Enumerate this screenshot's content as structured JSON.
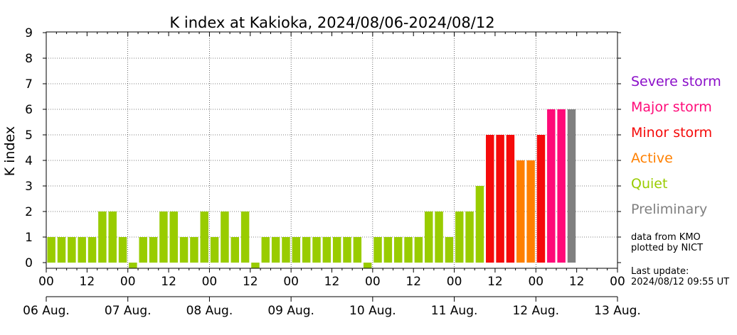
{
  "chart_data": {
    "type": "bar",
    "title": "K index at Kakioka, 2024/08/06-2024/08/12",
    "ylabel": "K index",
    "xlabel": "",
    "ylim": [
      0,
      9
    ],
    "yticks": [
      "0",
      "1",
      "2",
      "3",
      "4",
      "5",
      "6",
      "7",
      "8",
      "9"
    ],
    "grid": true,
    "x_start": "2024/08/06 00",
    "x_end": "2024/08/13 00",
    "interval_hours": 3,
    "hour_ticks": [
      "00",
      "12",
      "00",
      "12",
      "00",
      "12",
      "00",
      "12",
      "00",
      "12",
      "00",
      "12",
      "00",
      "12",
      "00"
    ],
    "day_ticks": [
      "06 Aug.",
      "07 Aug.",
      "08 Aug.",
      "09 Aug.",
      "10 Aug.",
      "11 Aug.",
      "12 Aug.",
      "13 Aug."
    ],
    "values": [
      1,
      1,
      1,
      1,
      1,
      2,
      2,
      1,
      0,
      1,
      1,
      2,
      2,
      1,
      1,
      2,
      1,
      2,
      1,
      2,
      0,
      1,
      1,
      1,
      1,
      1,
      1,
      1,
      1,
      1,
      1,
      0,
      1,
      1,
      1,
      1,
      1,
      2,
      2,
      1,
      2,
      2,
      3,
      5,
      5,
      5,
      4,
      4,
      5,
      6,
      6,
      6
    ],
    "categories": [
      "quiet",
      "quiet",
      "quiet",
      "quiet",
      "quiet",
      "quiet",
      "quiet",
      "quiet",
      "quiet",
      "quiet",
      "quiet",
      "quiet",
      "quiet",
      "quiet",
      "quiet",
      "quiet",
      "quiet",
      "quiet",
      "quiet",
      "quiet",
      "quiet",
      "quiet",
      "quiet",
      "quiet",
      "quiet",
      "quiet",
      "quiet",
      "quiet",
      "quiet",
      "quiet",
      "quiet",
      "quiet",
      "quiet",
      "quiet",
      "quiet",
      "quiet",
      "quiet",
      "quiet",
      "quiet",
      "quiet",
      "quiet",
      "quiet",
      "quiet",
      "minor",
      "minor",
      "minor",
      "active",
      "active",
      "minor",
      "major",
      "major",
      "preliminary"
    ],
    "legend": [
      {
        "key": "severe",
        "label": "Severe storm",
        "color": "#8B0FC9"
      },
      {
        "key": "major",
        "label": "Major storm",
        "color": "#FF0A78"
      },
      {
        "key": "minor",
        "label": "Minor storm",
        "color": "#F50A0A"
      },
      {
        "key": "active",
        "label": "Active",
        "color": "#FF8000"
      },
      {
        "key": "quiet",
        "label": "Quiet",
        "color": "#99CC00"
      },
      {
        "key": "preliminary",
        "label": "Preliminary",
        "color": "#808080"
      }
    ]
  },
  "notes": {
    "line1": "data from KMO",
    "line2": "plotted by NICT",
    "line3": "Last update:",
    "line4": "2024/08/12 09:55 UT"
  }
}
